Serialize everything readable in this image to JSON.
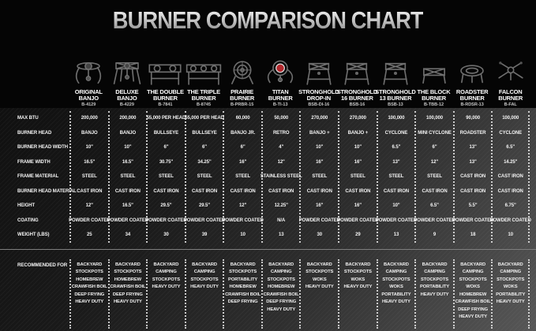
{
  "title": "BURNER COMPARISON CHART",
  "spec_row_labels": [
    "MAX BTU",
    "BURNER HEAD",
    "BURNER HEAD WIDTH",
    "FRAME WIDTH",
    "FRAME MATERIAL",
    "BURNER HEAD MATERIAL",
    "HEIGHT",
    "COATING",
    "WEIGHT (LBS)"
  ],
  "recommended_label": "RECOMMENDED FOR",
  "colors": {
    "background": "#000000",
    "panel_gradient_start": "#101010",
    "panel_gradient_end": "#575757",
    "text": "#f3f3f3",
    "model_text": "#c9c9c9",
    "divider_line": "#7e7e7e",
    "dotted_separator": "#e6e6e6",
    "titan_badge_red": "#b3282d",
    "title_silver": "#c9c9c9"
  },
  "products": [
    {
      "name": "ORIGINAL BANJO",
      "model": "B-4129",
      "icon": "banjo-burner-icon",
      "shape": "banjo",
      "specs": [
        "200,000",
        "BANJO",
        "10\"",
        "16.5\"",
        "STEEL",
        "CAST IRON",
        "12\"",
        "POWDER COATED",
        "25"
      ],
      "recommended": [
        "BACKYARD",
        "STOCKPOTS",
        "HOMEBREW",
        "CRAWFISH BOIL",
        "DEEP FRYING",
        "HEAVY DUTY"
      ]
    },
    {
      "name": "DELUXE BANJO",
      "model": "B-4229",
      "icon": "deluxe-banjo-burner-icon",
      "shape": "banjo2",
      "specs": [
        "200,000",
        "BANJO",
        "10\"",
        "16.5\"",
        "STEEL",
        "CAST IRON",
        "16.5\"",
        "POWDER COATED",
        "34"
      ],
      "recommended": [
        "BACKYARD",
        "STOCKPOTS",
        "HOMEBREW",
        "CRAWFISH BOIL",
        "DEEP FRYING",
        "HEAVY DUTY"
      ]
    },
    {
      "name": "THE DOUBLE BURNER",
      "model": "B-7841",
      "icon": "double-burner-icon",
      "shape": "double",
      "specs": [
        "55,000 PER HEAD",
        "BULLSEYE",
        "6\"",
        "30.75\"",
        "STEEL",
        "CAST IRON",
        "29.5\"",
        "POWDER COATED",
        "30"
      ],
      "recommended": [
        "BACKYARD",
        "CAMPING",
        "STOCKPOTS",
        "HEAVY DUTY"
      ]
    },
    {
      "name": "THE TRIPLE BURNER",
      "model": "B-8745",
      "icon": "triple-burner-icon",
      "shape": "triple",
      "specs": [
        "55,000 PER HEAD",
        "BULLSEYE",
        "6\"",
        "34.25\"",
        "STEEL",
        "CAST IRON",
        "29.5\"",
        "POWDER COATED",
        "39"
      ],
      "recommended": [
        "BACKYARD",
        "CAMPING",
        "STOCKPOTS",
        "HEAVY DUTY"
      ]
    },
    {
      "name": "PRAIRIE BURNER",
      "model": "B-PRBR-15",
      "icon": "prairie-burner-icon",
      "shape": "rings",
      "specs": [
        "60,000",
        "BANJO JR.",
        "6\"",
        "16\"",
        "STEEL",
        "CAST IRON",
        "12\"",
        "POWDER COATED",
        "10"
      ],
      "recommended": [
        "BACKYARD",
        "STOCKPOTS",
        "PORTABILITY",
        "HOMEBREW",
        "CRAWFISH BOIL",
        "DEEP FRYING"
      ]
    },
    {
      "name": "TITAN BURNER",
      "model": "B-TI-13",
      "icon": "titan-burner-icon",
      "shape": "titan",
      "specs": [
        "50,000",
        "RETRO",
        "4\"",
        "12\"",
        "STAINLESS STEEL",
        "CAST IRON",
        "12.25\"",
        "N/A",
        "13"
      ],
      "recommended": [
        "BACKYARD",
        "CAMPING",
        "STOCKPOTS",
        "HOMEBREW",
        "CRAWFISH BOIL",
        "DEEP FRYING",
        "HEAVY DUTY"
      ]
    },
    {
      "name": "STRONGHOLD DROP-IN",
      "model": "BSB-DI-16",
      "icon": "stronghold-drop-in-icon",
      "shape": "stool",
      "specs": [
        "270,000",
        "BANJO +",
        "10\"",
        "16\"",
        "STEEL",
        "CAST IRON",
        "16\"",
        "POWDER COATED",
        "30"
      ],
      "recommended": [
        "BACKYARD",
        "STOCKPOTS",
        "WOKS",
        "HEAVY DUTY"
      ]
    },
    {
      "name": "STRONGHOLD 16 BURNER",
      "model": "BSB-16",
      "icon": "stronghold-16-burner-icon",
      "shape": "stool",
      "specs": [
        "270,000",
        "BANJO +",
        "10\"",
        "16\"",
        "STEEL",
        "CAST IRON",
        "16\"",
        "POWDER COATED",
        "29"
      ],
      "recommended": [
        "BACKYARD",
        "STOCKPOTS",
        "WOKS",
        "HEAVY DUTY"
      ]
    },
    {
      "name": "STRONGHOLD 13 BURNER",
      "model": "BSB-13",
      "icon": "stronghold-13-burner-icon",
      "shape": "stool",
      "specs": [
        "100,000",
        "CYCLONE",
        "6.5\"",
        "13\"",
        "STEEL",
        "CAST IRON",
        "10\"",
        "POWDER COATED",
        "13"
      ],
      "recommended": [
        "BACKYARD",
        "CAMPING",
        "STOCKPOTS",
        "WOKS",
        "PORTABILITY",
        "HEAVY DUTY"
      ]
    },
    {
      "name": "THE BLOCK BURNER",
      "model": "B-TBB-12",
      "icon": "block-burner-icon",
      "shape": "block",
      "specs": [
        "100,000",
        "MINI CYCLONE",
        "6\"",
        "12\"",
        "STEEL",
        "CAST IRON",
        "6.5\"",
        "POWDER COATED",
        "9"
      ],
      "recommended": [
        "BACKYARD",
        "CAMPING",
        "STOCKPOTS",
        "PORTABILITY",
        "HEAVY DUTY"
      ]
    },
    {
      "name": "ROADSTER BURNER",
      "model": "B-RDSR-13",
      "icon": "roadster-burner-icon",
      "shape": "roadster",
      "specs": [
        "90,000",
        "ROADSTER",
        "13\"",
        "13\"",
        "CAST IRON",
        "CAST IRON",
        "5.5\"",
        "POWDER COATED",
        "18"
      ],
      "recommended": [
        "BACKYARD",
        "CAMPING",
        "STOCKPOTS",
        "WOKS",
        "HOMEBREW",
        "CRAWFISH BOIL",
        "DEEP FRYING",
        "HEAVY DUTY"
      ]
    },
    {
      "name": "FALCON BURNER",
      "model": "B-FAL",
      "icon": "falcon-burner-icon",
      "shape": "falcon",
      "specs": [
        "100,000",
        "CYCLONE",
        "6.5\"",
        "14.25\"",
        "CAST IRON",
        "CAST IRON",
        "6.75\"",
        "POWDER COATED",
        "10"
      ],
      "recommended": [
        "BACKYARD",
        "CAMPING",
        "STOCKPOTS",
        "WOKS",
        "PORTABILITY",
        "HEAVY DUTY"
      ]
    }
  ],
  "chart_data": {
    "type": "table",
    "title": "BURNER COMPARISON CHART",
    "columns": [
      "ORIGINAL BANJO B-4129",
      "DELUXE BANJO B-4229",
      "THE DOUBLE BURNER B-7841",
      "THE TRIPLE BURNER B-8745",
      "PRAIRIE BURNER B-PRBR-15",
      "TITAN BURNER B-TI-13",
      "STRONGHOLD DROP-IN BSB-DI-16",
      "STRONGHOLD 16 BURNER BSB-16",
      "STRONGHOLD 13 BURNER BSB-13",
      "THE BLOCK BURNER B-TBB-12",
      "ROADSTER BURNER B-RDSR-13",
      "FALCON BURNER B-FAL"
    ],
    "row_labels": [
      "MAX BTU",
      "BURNER HEAD",
      "BURNER HEAD WIDTH",
      "FRAME WIDTH",
      "FRAME MATERIAL",
      "BURNER HEAD MATERIAL",
      "HEIGHT",
      "COATING",
      "WEIGHT (LBS)",
      "RECOMMENDED FOR"
    ],
    "rows": [
      [
        "200,000",
        "200,000",
        "55,000 PER HEAD",
        "55,000 PER HEAD",
        "60,000",
        "50,000",
        "270,000",
        "270,000",
        "100,000",
        "100,000",
        "90,000",
        "100,000"
      ],
      [
        "BANJO",
        "BANJO",
        "BULLSEYE",
        "BULLSEYE",
        "BANJO JR.",
        "RETRO",
        "BANJO +",
        "BANJO +",
        "CYCLONE",
        "MINI CYCLONE",
        "ROADSTER",
        "CYCLONE"
      ],
      [
        "10\"",
        "10\"",
        "6\"",
        "6\"",
        "6\"",
        "4\"",
        "10\"",
        "10\"",
        "6.5\"",
        "6\"",
        "13\"",
        "6.5\""
      ],
      [
        "16.5\"",
        "16.5\"",
        "30.75\"",
        "34.25\"",
        "16\"",
        "12\"",
        "16\"",
        "16\"",
        "13\"",
        "12\"",
        "13\"",
        "14.25\""
      ],
      [
        "STEEL",
        "STEEL",
        "STEEL",
        "STEEL",
        "STEEL",
        "STAINLESS STEEL",
        "STEEL",
        "STEEL",
        "STEEL",
        "STEEL",
        "CAST IRON",
        "CAST IRON"
      ],
      [
        "CAST IRON",
        "CAST IRON",
        "CAST IRON",
        "CAST IRON",
        "CAST IRON",
        "CAST IRON",
        "CAST IRON",
        "CAST IRON",
        "CAST IRON",
        "CAST IRON",
        "CAST IRON",
        "CAST IRON"
      ],
      [
        "12\"",
        "16.5\"",
        "29.5\"",
        "29.5\"",
        "12\"",
        "12.25\"",
        "16\"",
        "16\"",
        "10\"",
        "6.5\"",
        "5.5\"",
        "6.75\""
      ],
      [
        "POWDER COATED",
        "POWDER COATED",
        "POWDER COATED",
        "POWDER COATED",
        "POWDER COATED",
        "N/A",
        "POWDER COATED",
        "POWDER COATED",
        "POWDER COATED",
        "POWDER COATED",
        "POWDER COATED",
        "POWDER COATED"
      ],
      [
        "25",
        "34",
        "30",
        "39",
        "10",
        "13",
        "30",
        "29",
        "13",
        "9",
        "18",
        "10"
      ],
      [
        "BACKYARD, STOCKPOTS, HOMEBREW, CRAWFISH BOIL, DEEP FRYING, HEAVY DUTY",
        "BACKYARD, STOCKPOTS, HOMEBREW, CRAWFISH BOIL, DEEP FRYING, HEAVY DUTY",
        "BACKYARD, CAMPING, STOCKPOTS, HEAVY DUTY",
        "BACKYARD, CAMPING, STOCKPOTS, HEAVY DUTY",
        "BACKYARD, STOCKPOTS, PORTABILITY, HOMEBREW, CRAWFISH BOIL, DEEP FRYING",
        "BACKYARD, CAMPING, STOCKPOTS, HOMEBREW, CRAWFISH BOIL, DEEP FRYING, HEAVY DUTY",
        "BACKYARD, STOCKPOTS, WOKS, HEAVY DUTY",
        "BACKYARD, STOCKPOTS, WOKS, HEAVY DUTY",
        "BACKYARD, CAMPING, STOCKPOTS, WOKS, PORTABILITY, HEAVY DUTY",
        "BACKYARD, CAMPING, STOCKPOTS, PORTABILITY, HEAVY DUTY",
        "BACKYARD, CAMPING, STOCKPOTS, WOKS, HOMEBREW, CRAWFISH BOIL, DEEP FRYING, HEAVY DUTY",
        "BACKYARD, CAMPING, STOCKPOTS, WOKS, PORTABILITY, HEAVY DUTY"
      ]
    ]
  }
}
